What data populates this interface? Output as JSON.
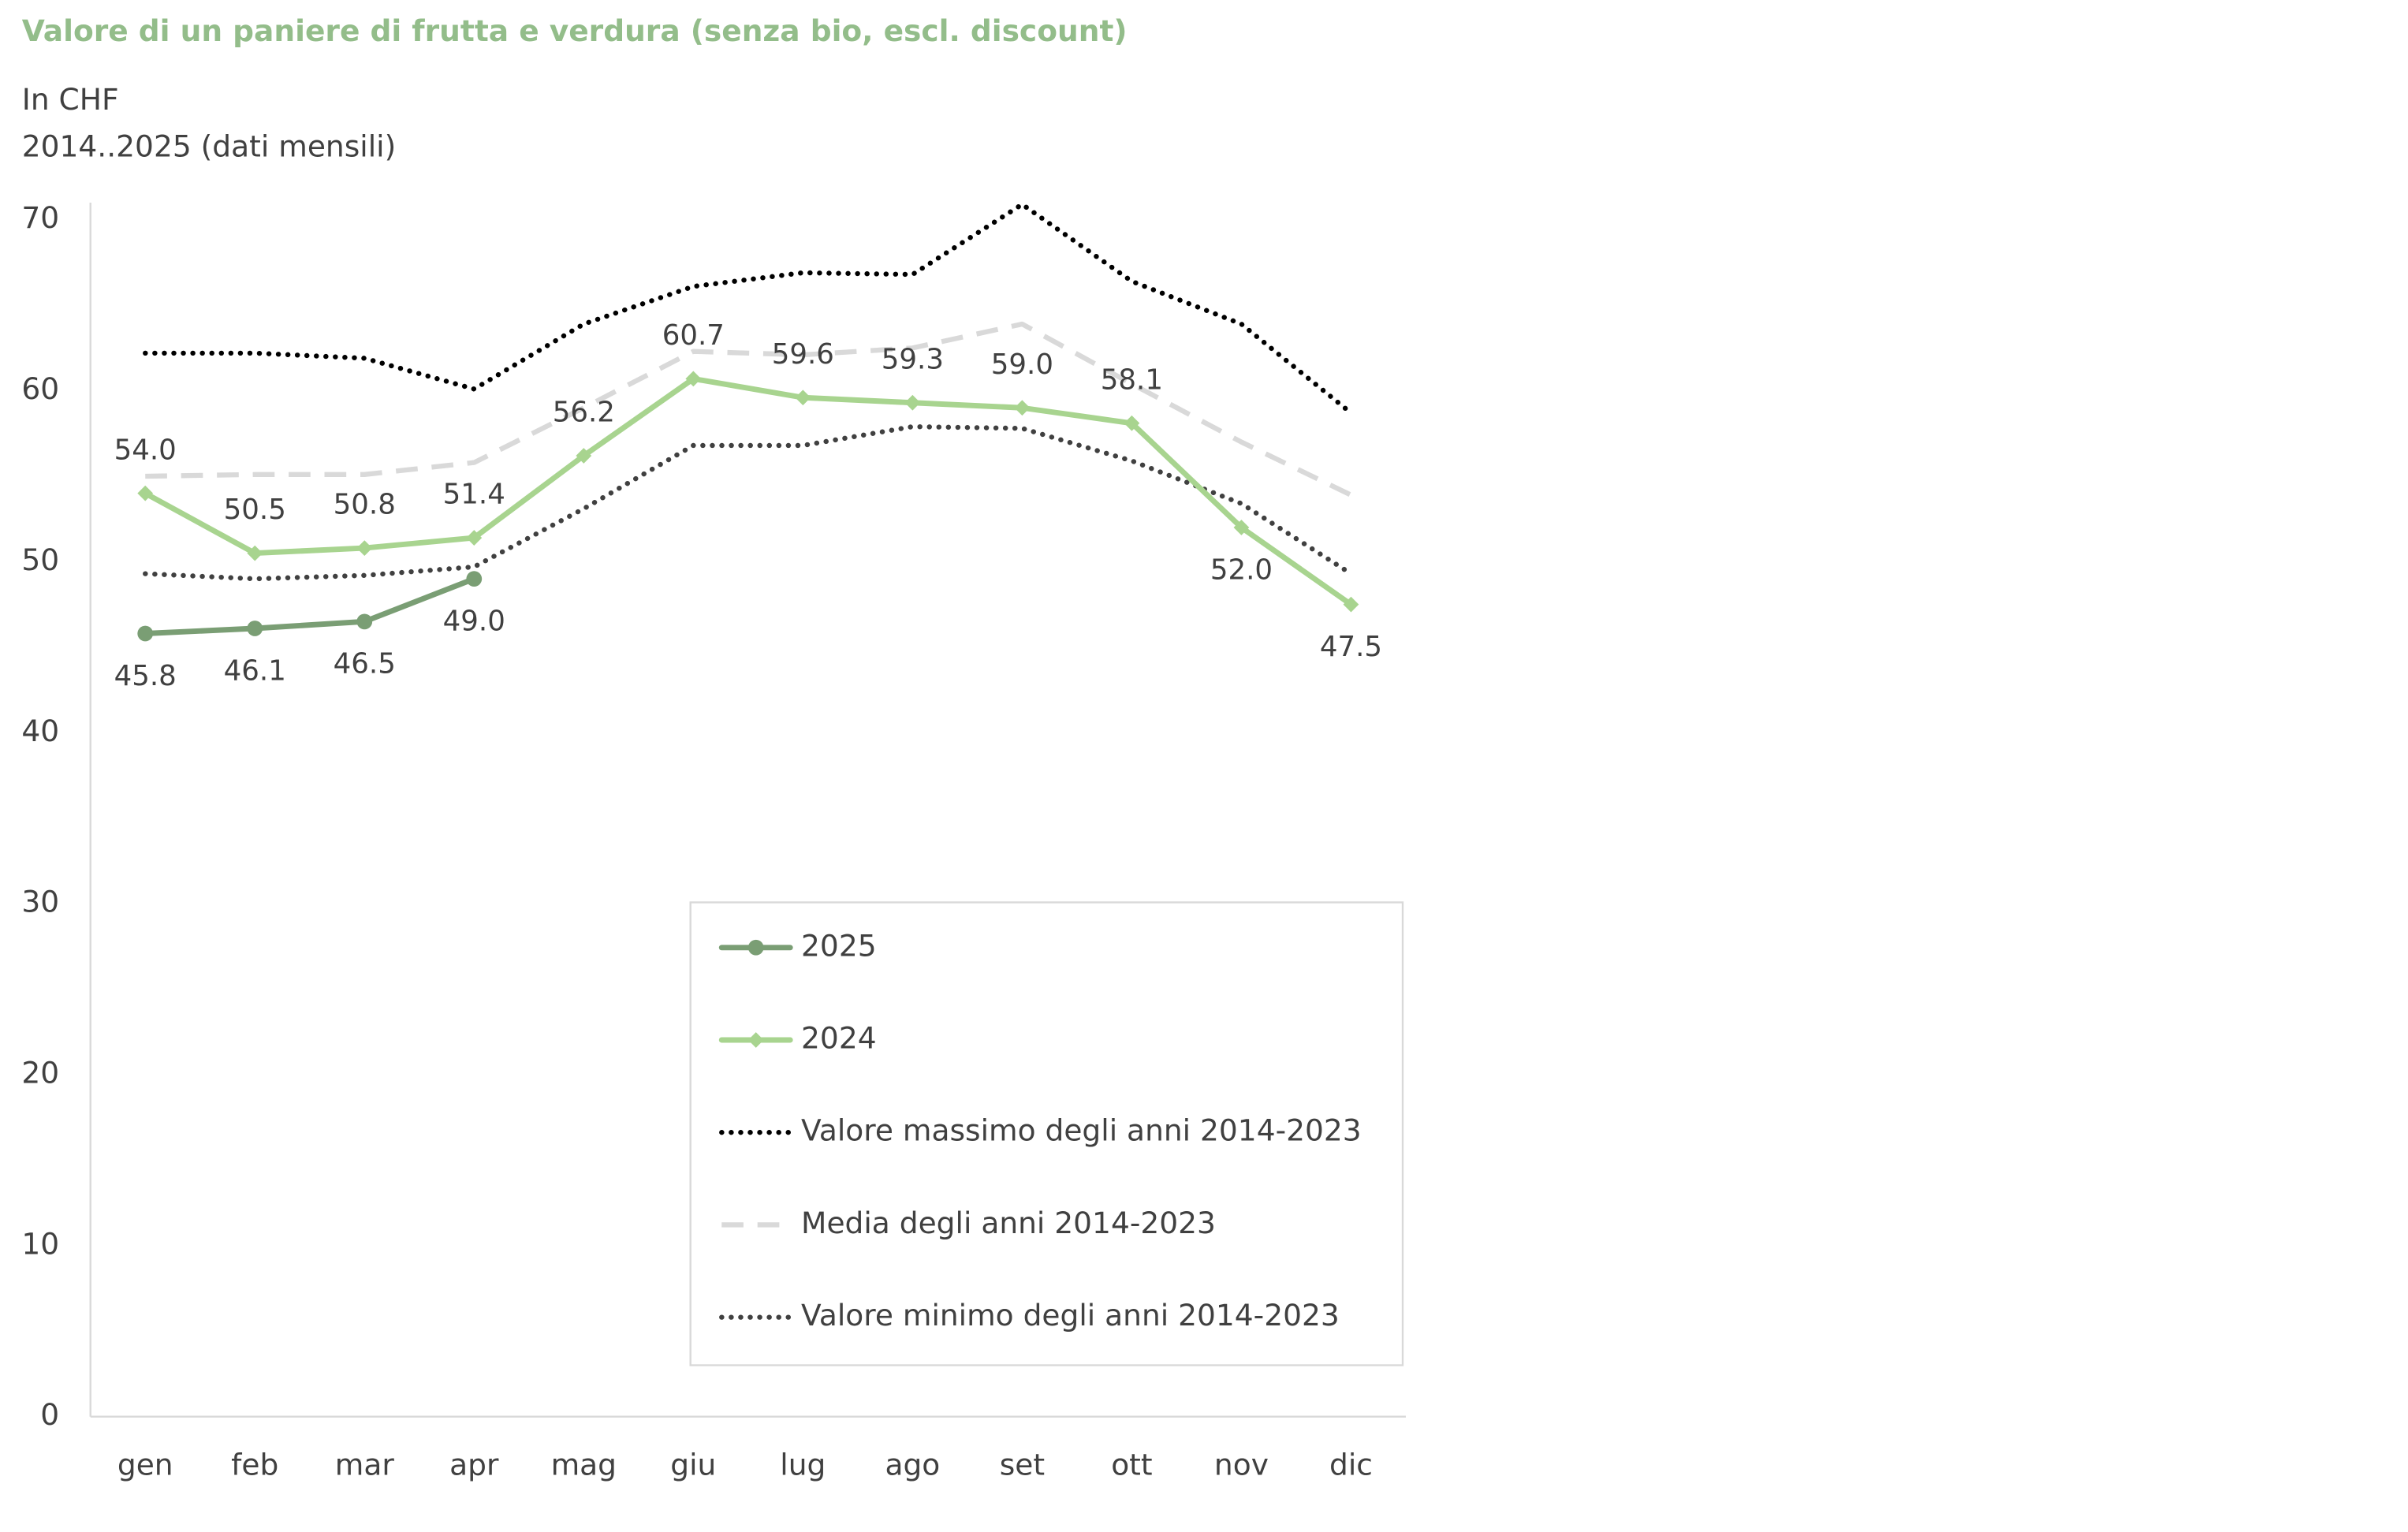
{
  "chart_data": {
    "type": "line",
    "title": "Valore di un paniere di frutta e verdura (senza bio, escl. discount)",
    "subtitle": [
      "In CHF",
      "2014..2025 (dati mensili)"
    ],
    "categories": [
      "gen",
      "feb",
      "mar",
      "apr",
      "mag",
      "giu",
      "lug",
      "ago",
      "set",
      "ott",
      "nov",
      "dic"
    ],
    "ylim": [
      0,
      70
    ],
    "yticks": [
      0,
      10,
      20,
      30,
      40,
      50,
      60,
      70
    ],
    "grid": false,
    "legend": "bottom-right",
    "series": [
      {
        "name": "2025",
        "color": "#7a9e74",
        "marker": "circle",
        "dash": "solid",
        "values": [
          45.8,
          46.1,
          46.5,
          49.0,
          null,
          null,
          null,
          null,
          null,
          null,
          null,
          null
        ],
        "value_labels": [
          "45.8",
          "46.1",
          "46.5",
          "49.0",
          null,
          null,
          null,
          null,
          null,
          null,
          null,
          null
        ]
      },
      {
        "name": "2024",
        "color": "#a8d48f",
        "marker": "diamond",
        "dash": "solid",
        "values": [
          54.0,
          50.5,
          50.8,
          51.4,
          56.2,
          60.7,
          59.6,
          59.3,
          59.0,
          58.1,
          52.0,
          47.5
        ],
        "value_labels": [
          "54.0",
          "50.5",
          "50.8",
          "51.4",
          "56.2",
          "60.7",
          "59.6",
          "59.3",
          "59.0",
          "58.1",
          "52.0",
          "47.5"
        ]
      },
      {
        "name": "Valore massimo degli anni 2014-2023",
        "color": "#000000",
        "marker": "none",
        "dash": "dotted",
        "values": [
          62.2,
          62.2,
          61.9,
          60.1,
          63.9,
          66.1,
          66.9,
          66.8,
          70.9,
          66.4,
          63.9,
          58.7
        ]
      },
      {
        "name": "Media degli anni 2014-2023",
        "color": "#d9d9d9",
        "marker": "none",
        "dash": "dashed",
        "values": [
          55.0,
          55.1,
          55.1,
          55.8,
          59.0,
          62.3,
          62.1,
          62.5,
          63.9,
          60.4,
          57.0,
          53.9
        ]
      },
      {
        "name": "Valore minimo degli anni 2014-2023",
        "color": "#404040",
        "marker": "none",
        "dash": "dotted",
        "values": [
          49.3,
          49.0,
          49.2,
          49.7,
          53.1,
          56.8,
          56.8,
          57.9,
          57.8,
          55.9,
          53.4,
          49.3
        ]
      }
    ]
  }
}
